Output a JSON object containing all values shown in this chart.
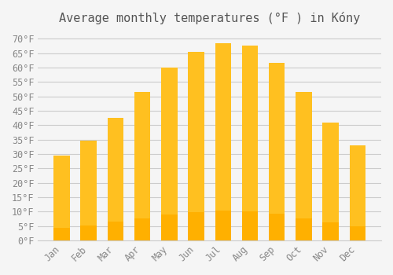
{
  "title": "Average monthly temperatures (°F ) in Kóny",
  "months": [
    "Jan",
    "Feb",
    "Mar",
    "Apr",
    "May",
    "Jun",
    "Jul",
    "Aug",
    "Sep",
    "Oct",
    "Nov",
    "Dec"
  ],
  "values": [
    29.5,
    34.5,
    42.5,
    51.5,
    60.0,
    65.5,
    68.5,
    67.5,
    61.5,
    51.5,
    41.0,
    33.0
  ],
  "bar_color_top": "#FFC020",
  "bar_color_bottom": "#FFB000",
  "background_color": "#F5F5F5",
  "grid_color": "#CCCCCC",
  "text_color": "#888888",
  "ylim": [
    0,
    72
  ],
  "yticks": [
    0,
    5,
    10,
    15,
    20,
    25,
    30,
    35,
    40,
    45,
    50,
    55,
    60,
    65,
    70
  ],
  "title_fontsize": 11,
  "tick_fontsize": 8.5,
  "font_family": "monospace"
}
